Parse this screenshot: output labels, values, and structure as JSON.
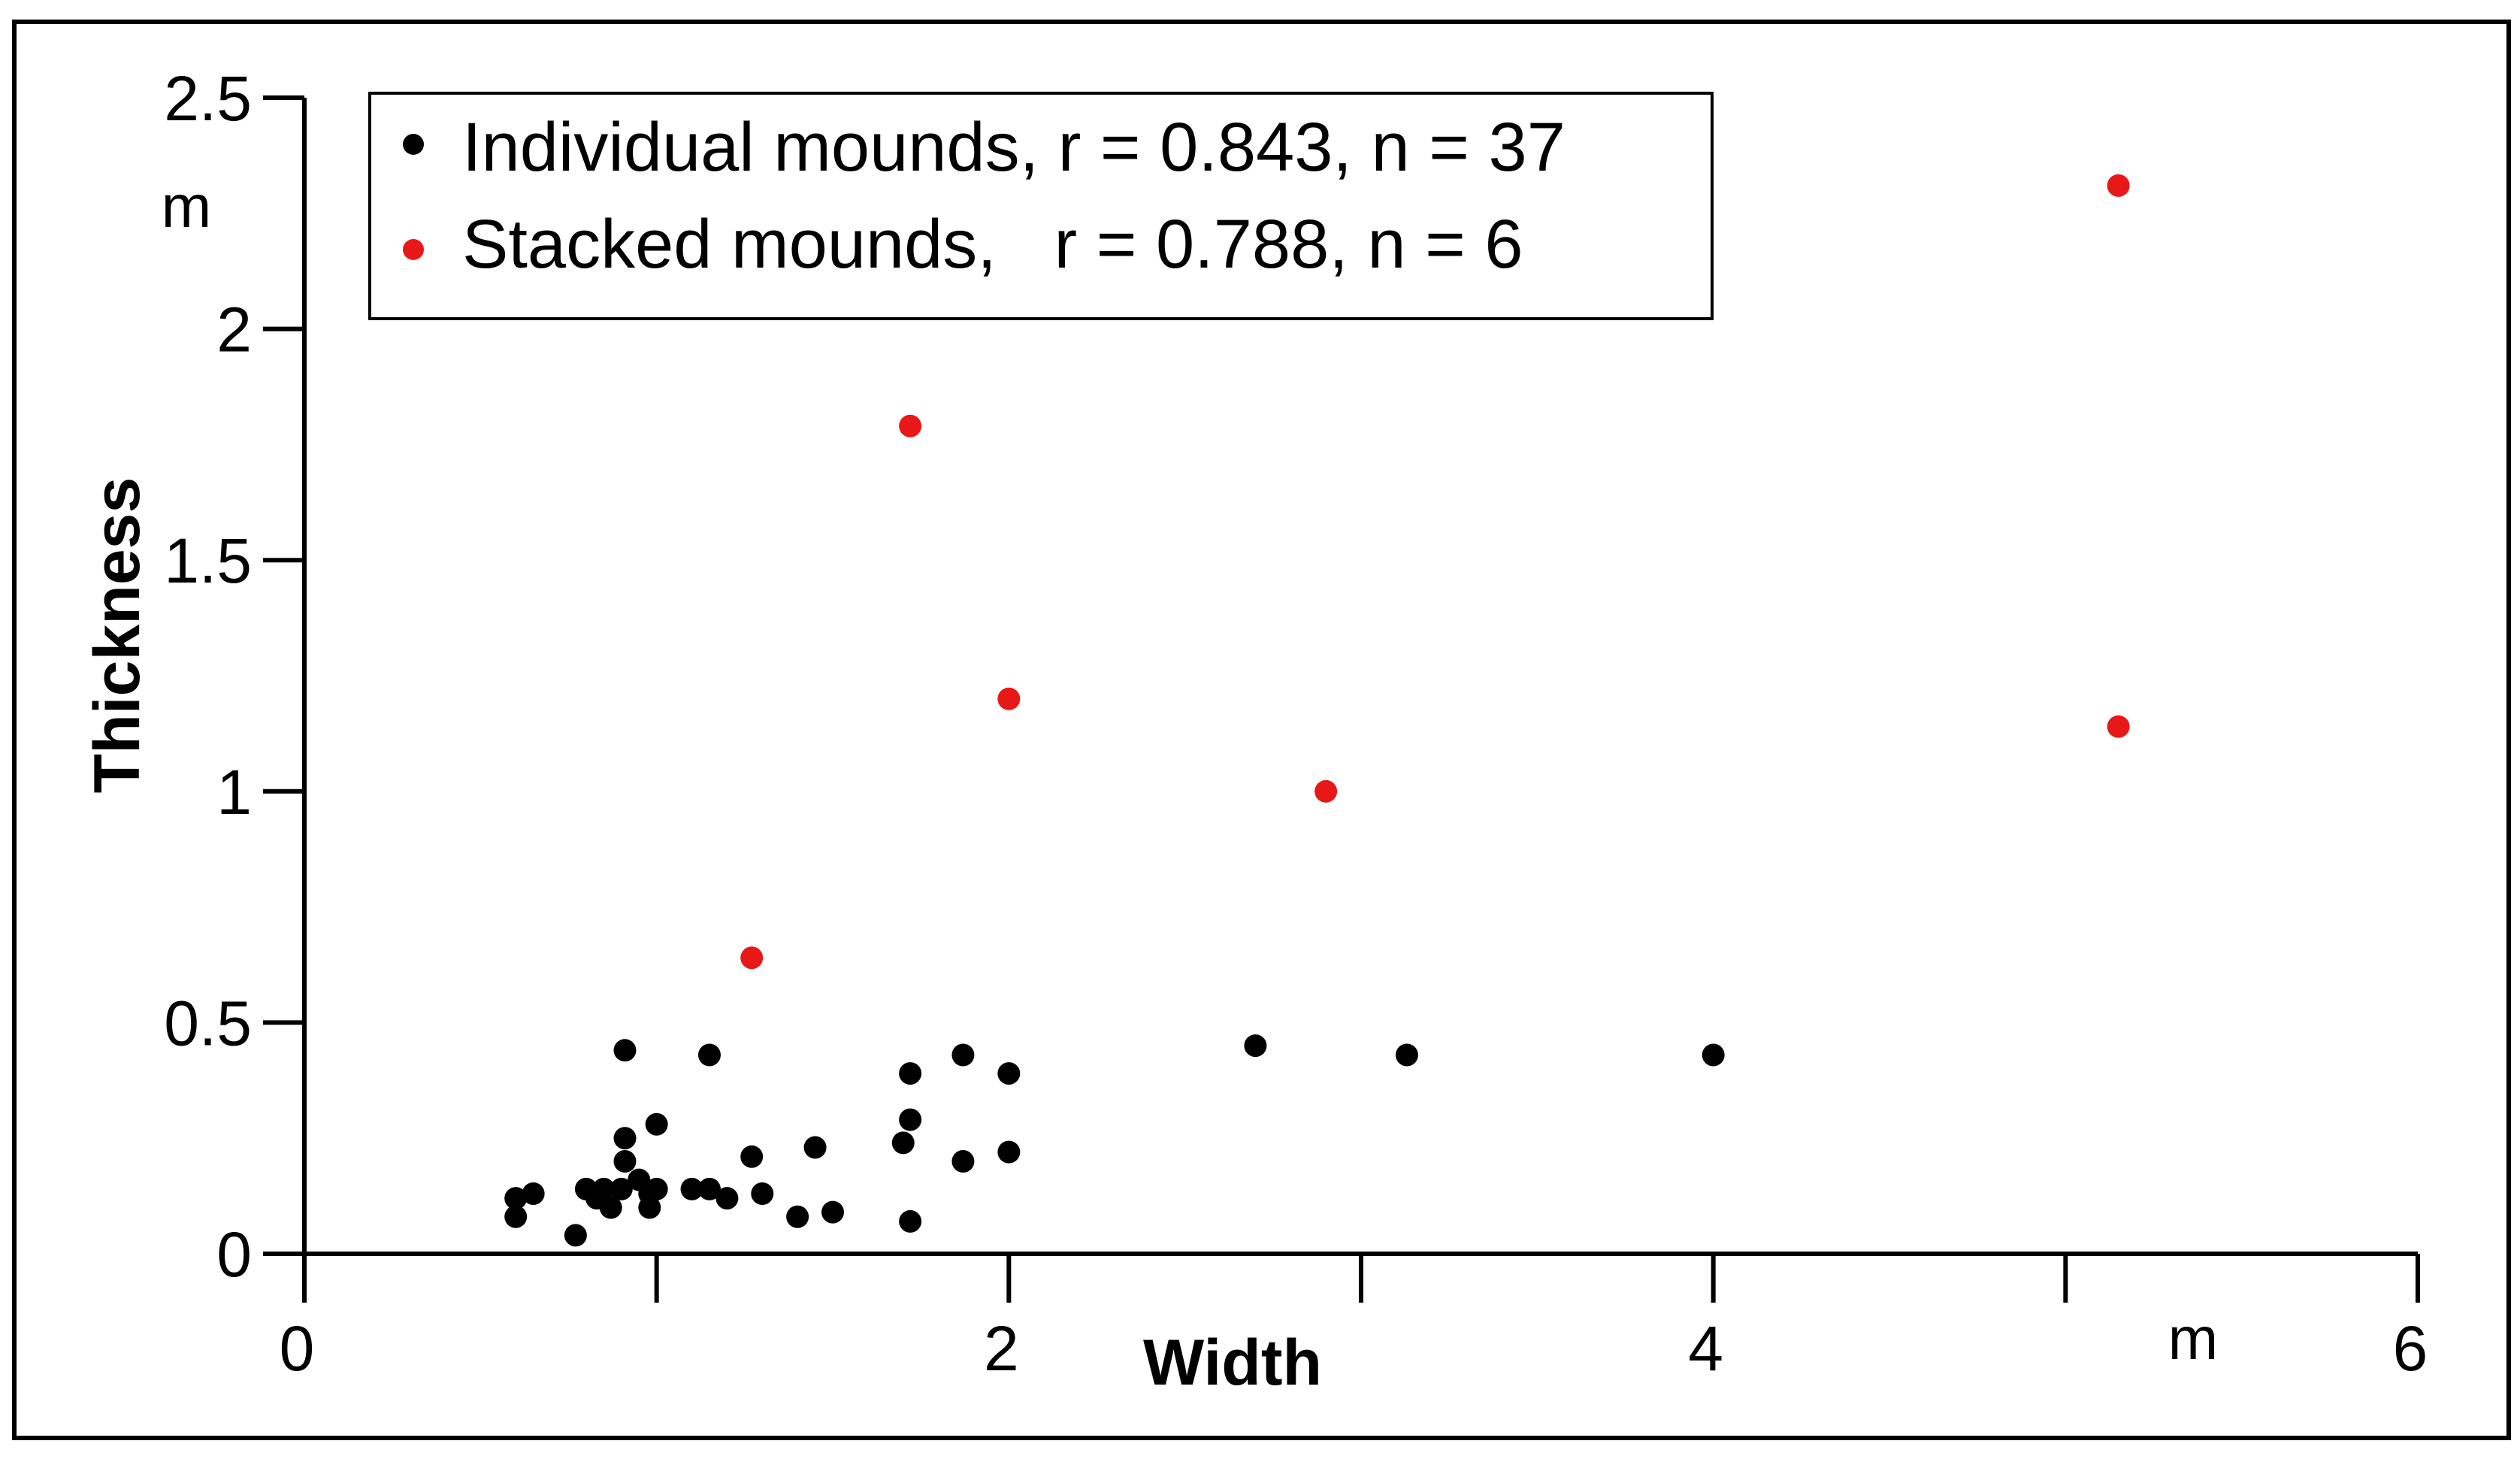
{
  "chart_data": {
    "type": "scatter",
    "xlabel": "Width",
    "ylabel": "Thickness",
    "x_unit": "m",
    "y_unit": "m",
    "xlim": [
      0,
      6
    ],
    "ylim": [
      0,
      2.5
    ],
    "x_ticks": [
      {
        "value": 0,
        "label": "0"
      },
      {
        "value": 1,
        "label": ""
      },
      {
        "value": 2,
        "label": "2"
      },
      {
        "value": 3,
        "label": ""
      },
      {
        "value": 4,
        "label": "4"
      },
      {
        "value": 5,
        "label": ""
      },
      {
        "value": 6,
        "label": "6"
      }
    ],
    "y_ticks": [
      {
        "value": 0,
        "label": "0"
      },
      {
        "value": 0.5,
        "label": "0.5"
      },
      {
        "value": 1,
        "label": "1"
      },
      {
        "value": 1.5,
        "label": "1.5"
      },
      {
        "value": 2,
        "label": "2"
      },
      {
        "value": 2.5,
        "label": "2.5"
      }
    ],
    "grid": false,
    "legend_position": "top-left",
    "series": [
      {
        "name": "Individual mounds, r = 0.843, n = 37",
        "color": "#000000",
        "points": [
          {
            "x": 0.6,
            "y": 0.12
          },
          {
            "x": 0.6,
            "y": 0.08
          },
          {
            "x": 0.65,
            "y": 0.13
          },
          {
            "x": 0.77,
            "y": 0.04
          },
          {
            "x": 0.8,
            "y": 0.14
          },
          {
            "x": 0.83,
            "y": 0.12
          },
          {
            "x": 0.85,
            "y": 0.14
          },
          {
            "x": 0.87,
            "y": 0.1
          },
          {
            "x": 0.9,
            "y": 0.14
          },
          {
            "x": 0.91,
            "y": 0.2
          },
          {
            "x": 0.91,
            "y": 0.25
          },
          {
            "x": 0.91,
            "y": 0.44
          },
          {
            "x": 0.98,
            "y": 0.1
          },
          {
            "x": 0.98,
            "y": 0.13
          },
          {
            "x": 1.0,
            "y": 0.14
          },
          {
            "x": 1.0,
            "y": 0.28
          },
          {
            "x": 1.1,
            "y": 0.14
          },
          {
            "x": 1.15,
            "y": 0.14
          },
          {
            "x": 1.15,
            "y": 0.43
          },
          {
            "x": 1.2,
            "y": 0.12
          },
          {
            "x": 1.27,
            "y": 0.21
          },
          {
            "x": 1.3,
            "y": 0.13
          },
          {
            "x": 1.4,
            "y": 0.08
          },
          {
            "x": 1.45,
            "y": 0.23
          },
          {
            "x": 1.5,
            "y": 0.09
          },
          {
            "x": 1.7,
            "y": 0.24
          },
          {
            "x": 1.72,
            "y": 0.07
          },
          {
            "x": 1.72,
            "y": 0.29
          },
          {
            "x": 1.72,
            "y": 0.39
          },
          {
            "x": 1.87,
            "y": 0.2
          },
          {
            "x": 1.87,
            "y": 0.43
          },
          {
            "x": 2.0,
            "y": 0.22
          },
          {
            "x": 2.0,
            "y": 0.39
          },
          {
            "x": 2.7,
            "y": 0.45
          },
          {
            "x": 3.13,
            "y": 0.43
          },
          {
            "x": 4.0,
            "y": 0.43
          },
          {
            "x": 0.95,
            "y": 0.16
          }
        ]
      },
      {
        "name": "Stacked mounds,   r = 0.788, n = 6",
        "color": "#e81818",
        "points": [
          {
            "x": 1.27,
            "y": 0.64
          },
          {
            "x": 1.72,
            "y": 1.79
          },
          {
            "x": 2.0,
            "y": 1.2
          },
          {
            "x": 2.9,
            "y": 1.0
          },
          {
            "x": 5.15,
            "y": 2.31
          },
          {
            "x": 5.15,
            "y": 1.14
          }
        ]
      }
    ]
  }
}
